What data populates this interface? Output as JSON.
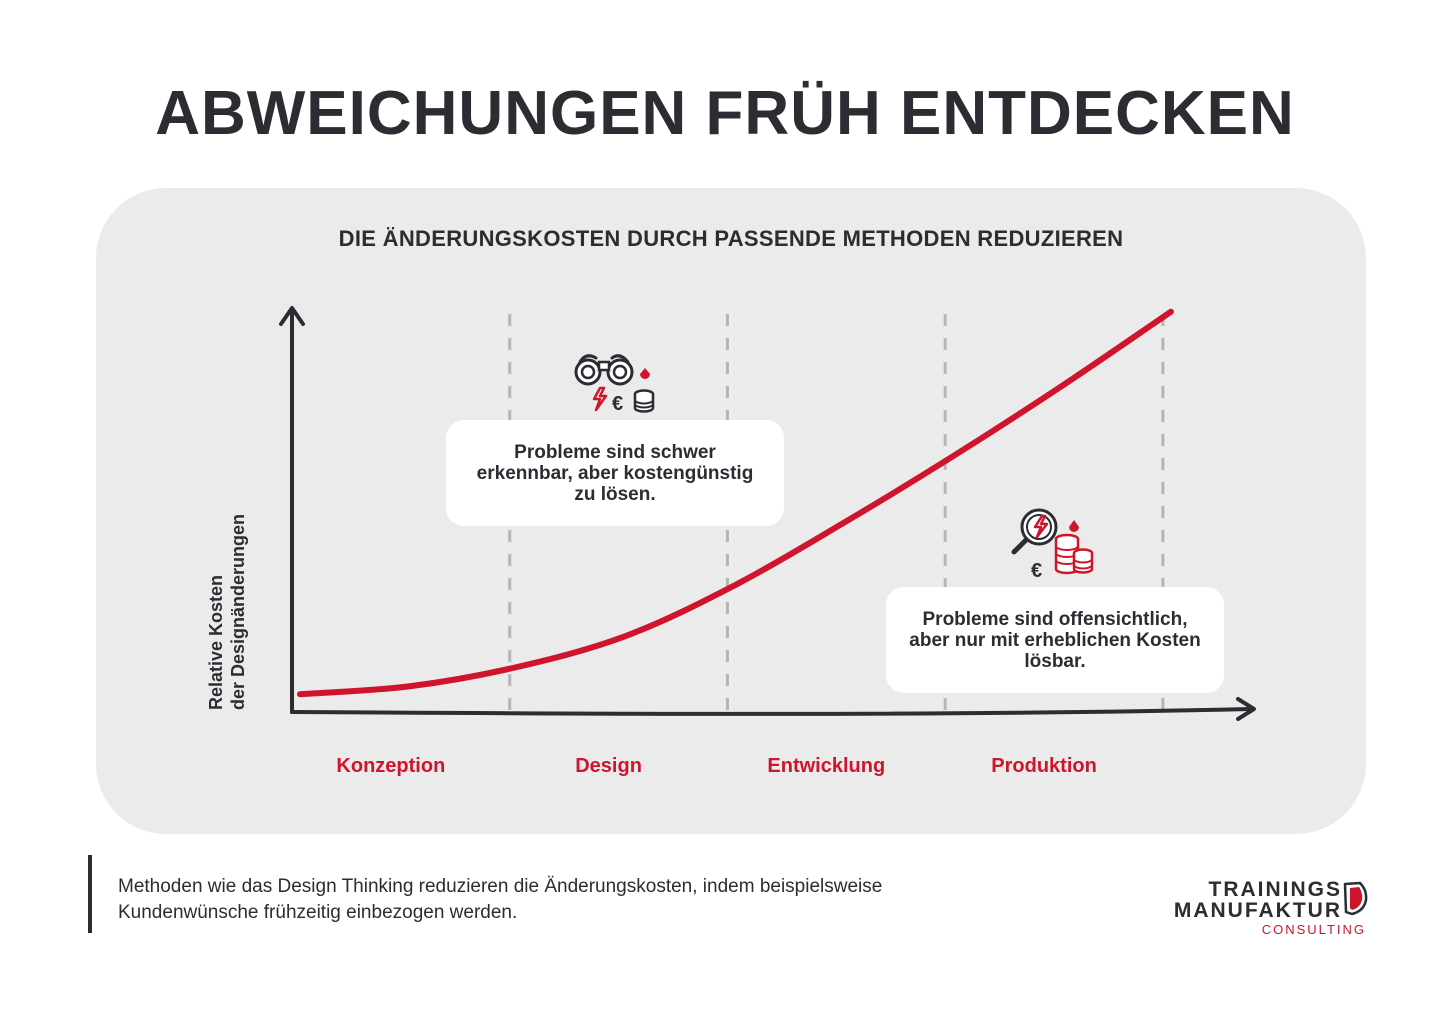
{
  "title": "ABWEICHUNGEN FRÜH ENTDECKEN",
  "chart_data": {
    "type": "line",
    "title": "DIE ÄNDERUNGSKOSTEN DURCH PASSENDE METHODEN REDUZIEREN",
    "ylabel_lines": [
      "Relative Kosten",
      "der Designänderungen"
    ],
    "xlabel": "",
    "categories": [
      "Konzeption",
      "Design",
      "Entwicklung",
      "Produktion"
    ],
    "x": [
      0,
      0.5,
      1,
      1.5,
      2,
      2.5,
      3,
      3.5,
      4
    ],
    "series": [
      {
        "values": [
          0.02,
          0.04,
          0.09,
          0.17,
          0.3,
          0.46,
          0.63,
          0.81,
          1.0
        ]
      }
    ],
    "xlim": [
      0,
      4.4
    ],
    "ylim": [
      0,
      1.03
    ],
    "grid": "vertical dashed at phase boundaries",
    "annotations": {
      "early": [
        "Probleme sind schwer",
        "erkennbar, aber kostengünstig",
        "zu lösen."
      ],
      "late": [
        "Probleme sind offensichtlich,",
        "aber nur mit erheblichen Kosten",
        "lösbar."
      ]
    },
    "colors": {
      "curve": "#d0142c",
      "axis": "#2b2d33",
      "grid": "#b5b5b5",
      "labels": "#d0142c"
    }
  },
  "icons": {
    "early": "binoculars-euro-coins-icon",
    "late": "magnifier-euro-coins-icon"
  },
  "footer": {
    "lines": [
      "Methoden wie das Design Thinking reduzieren die Änderungskosten, indem beispielsweise",
      "Kundenwünsche frühzeitig einbezogen werden."
    ]
  },
  "logo": {
    "line1": "TRAININGS",
    "line2": "MANUFAKTUR",
    "line3": "CONSULTING"
  }
}
